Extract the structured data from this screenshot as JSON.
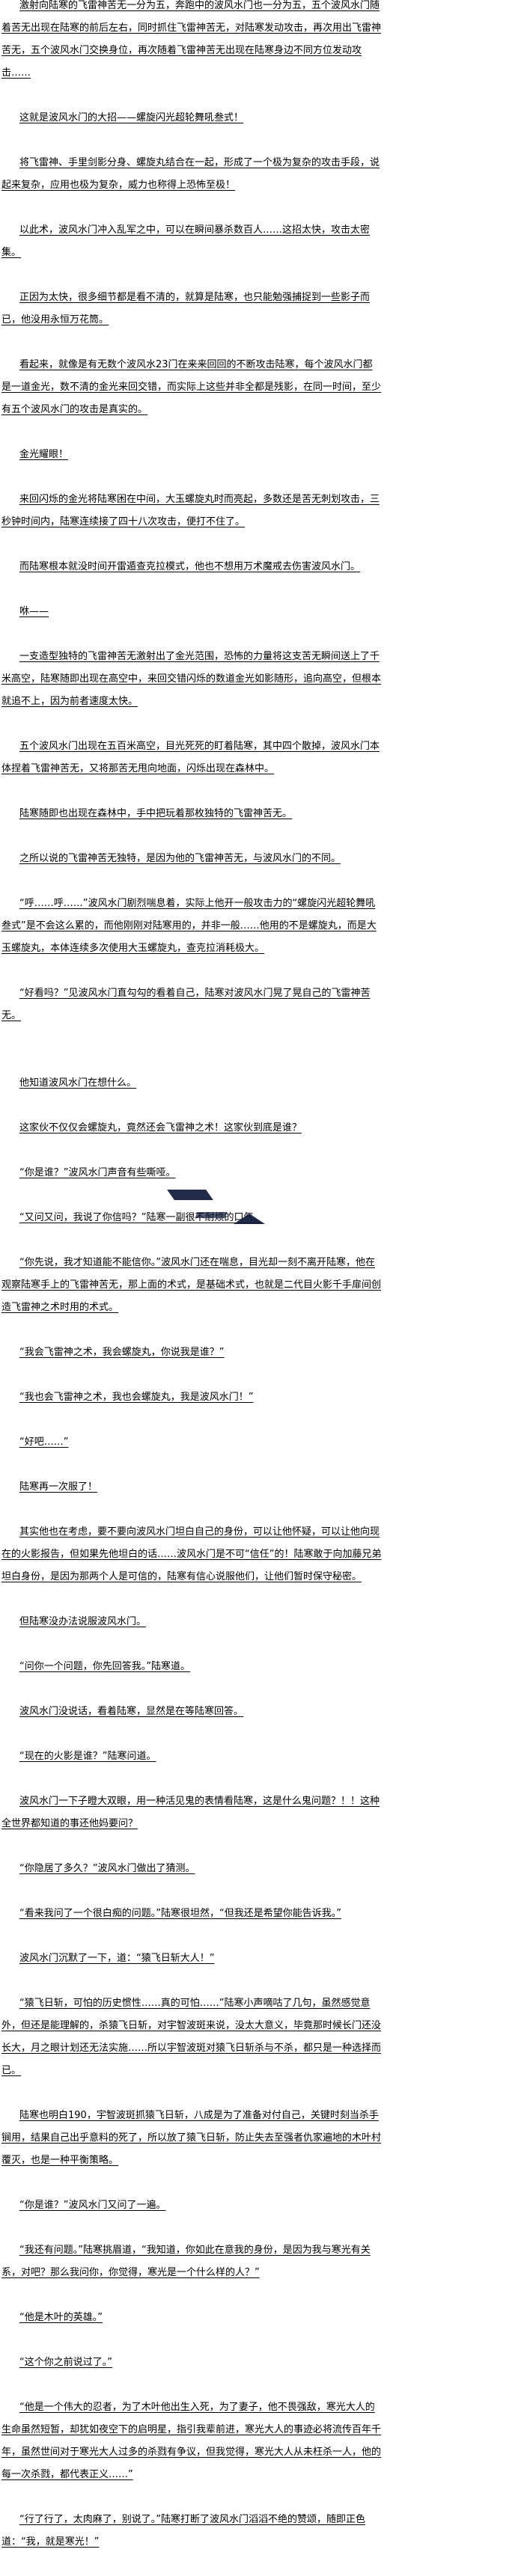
{
  "paragraphs": [
    "激射向陆寒的飞雷神苦无一分为五，奔跑中的波风水门也一分为五，五个波风水门随着苦无出现在陆寒的前后左右，同时抓住飞雷神苦无，对陆寒发动攻击，再次用出飞雷神苦无，五个波风水门交换身位，再次随着飞雷神苦无出现在陆寒身边不同方位发动攻击……",
    "这就是波风水门的大招——螺旋闪光超轮舞吼叁式！",
    "将飞雷神、手里剑影分身、螺旋丸结合在一起，形成了一个极为复杂的攻击手段，说起来复杂，应用也极为复杂，威力也称得上恐怖至极！",
    "以此术，波风水门冲入乱军之中，可以在瞬间暴杀数百人……这招太快，攻击太密集。",
    "正因为太快，很多细节都是看不清的，就算是陆寒，也只能勉强捕捉到一些影子而已，他没用永恒万花筒。",
    "看起来，就像是有无数个波风水23门在来来回回的不断攻击陆寒，每个波风水门都是一道金光，数不清的金光来回交错，而实际上这些并非全都是残影，在同一时间，至少有五个波风水门的攻击是真实的。",
    "金光耀眼！",
    "来回闪烁的金光将陆寒困在中间，大玉螺旋丸时而亮起，多数还是苦无刺划攻击，三秒钟时间内，陆寒连续接了四十八次攻击，便打不住了。",
    "而陆寒根本就没时间开雷遁查克拉模式，他也不想用万术魔戒去伤害波风水门。",
    "咻——",
    "一支造型独特的飞雷神苦无激射出了金光范围，恐怖的力量将这支苦无瞬间送上了千米高空，陆寒随即出现在高空中，来回交错闪烁的数道金光如影随形，追向高空，但根本就追不上，因为前者速度太快。",
    "五个波风水门出现在五百米高空，目光死死的盯着陆寒，其中四个散掉，波风水门本体捏着飞雷神苦无，又将那苦无甩向地面，闪烁出现在森林中。",
    "陆寒随即也出现在森林中，手中把玩着那枚独特的飞雷神苦无。",
    "之所以说的飞雷神苦无独特，是因为他的飞雷神苦无，与波风水门的不同。",
    "“呼……呼……”波风水门剧烈喘息着，实际上他开一般攻击力的“螺旋闪光超轮舞吼叁式”是不会这么累的，而他刚刚对陆寒用的，并非一般……他用的不是螺旋丸，而是大玉螺旋丸，本体连续多次使用大玉螺旋丸，查克拉消耗极大。",
    "“好看吗？”见波风水门直勾勾的看着自己，陆寒对波风水门晃了晃自己的飞雷神苦无。",
    "他知道波风水门在想什么。",
    "这家伙不仅仅会螺旋丸，竟然还会飞雷神之术！这家伙到底是谁？",
    "“你是谁？”波风水门声音有些嘶哑。",
    "“又问又问，我说了你信吗？”陆寒一副很不耐烦的口气。",
    "“你先说，我才知道能不能信你。”波风水门还在喘息，目光却一刻不离开陆寒，他在观察陆寒手上的飞雷神苦无，那上面的术式，是基础术式，也就是二代目火影千手扉间创造飞雷神之术时用的术式。",
    "“我会飞雷神之术，我会螺旋丸，你说我是谁？”",
    "“我也会飞雷神之术，我也会螺旋丸，我是波风水门！”",
    "“好吧……”",
    "陆寒再一次服了！",
    "其实他也在考虑，要不要向波风水门坦白自己的身份，可以让他怀疑，可以让他向现在的火影报告，但如果先他坦白的话……波风水门是不可“信任”的！陆寒敢于向加藤兄弟坦白身份，是因为那两个人是可信的，陆寒有信心说服他们，让他们暂时保守秘密。",
    "但陆寒没办法说服波风水门。",
    "“问你一个问题，你先回答我。”陆寒道。",
    "波风水门没说话，看着陆寒，显然是在等陆寒回答。",
    "“现在的火影是谁？”陆寒问道。",
    "波风水门一下子瞪大双眼，用一种活见鬼的表情看陆寒，这是什么鬼问题？！！这种全世界都知道的事还他妈要问？",
    "“你隐居了多久？”波风水门做出了猜测。",
    "“看来我问了一个很白痴的问题。”陆寒很坦然，“但我还是希望你能告诉我。”",
    "波风水门沉默了一下，道：“猿飞日斩大人！”",
    "“猿飞日斩，可怕的历史惯性……真的可怕……”陆寒小声嘀咕了几句，虽然感觉意外，但还是能理解的，杀猿飞日斩，对宇智波斑来说，没太大意义，毕竟那时候长门还没长大，月之眼计划还无法实施……所以宇智波斑对猿飞日斩杀与不杀，都只是一种选择而已。",
    "陆寒也明白190，宇智波斑抓猿飞日斩，八成是为了准备对付自己，关键时刻当杀手锏用，结果自己出乎意料的死了，所以放了猿飞日斩，防止失去至强者仇家遍地的木叶村覆灭，也是一种平衡策略。",
    "“你是谁？”波风水门又问了一遍。",
    "“我还有问题。”陆寒挑眉道，“我知道，你如此在意我的身份，是因为我与寒光有关系，对吧？那么我问你，你觉得，寒光是一个什么样的人？”",
    "“他是木叶的英雄。”",
    "“这个你之前说过了。”",
    "“他是一个伟大的忍者，为了木叶他出生入死，为了妻子，他不畏强敌，寒光大人的生命虽然短暂，却犹如夜空下的启明星，指引我辈前进，寒光大人的事迹必将流传百年千年，虽然世间对于寒光大人过多的杀戮有争议，但我觉得，寒光大人从未枉杀一人，他的每一次杀戮，都代表正义……”",
    "“行了行了，太肉麻了，别说了。”陆寒打断了波风水门滔滔不绝的赞颂，随即正色道：“我，就是寒光！”"
  ],
  "colors": {
    "text": "#000000",
    "background": "#ffffff",
    "smudge": "#0d1a3a"
  }
}
